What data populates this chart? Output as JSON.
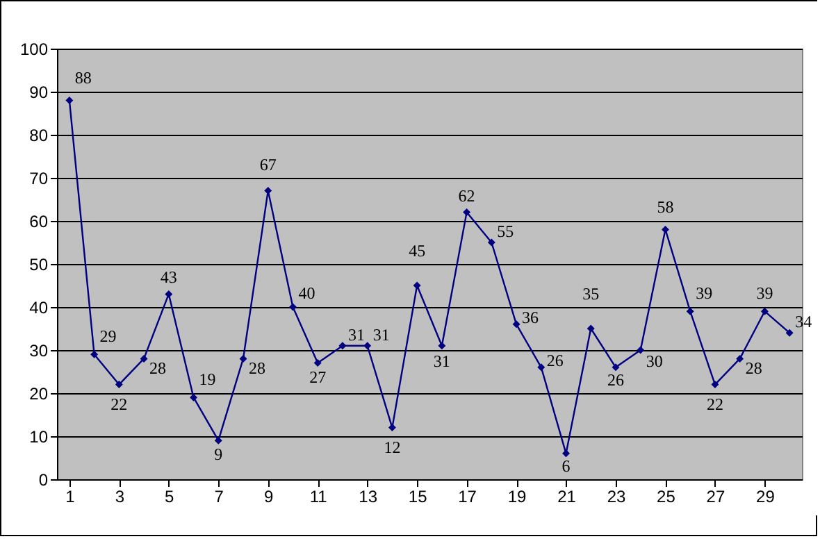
{
  "chart_data": {
    "type": "line",
    "x": [
      1,
      2,
      3,
      4,
      5,
      6,
      7,
      8,
      9,
      10,
      11,
      12,
      13,
      14,
      15,
      16,
      17,
      18,
      19,
      20,
      21,
      22,
      23,
      24,
      25,
      26,
      27,
      28,
      29,
      30
    ],
    "series": [
      {
        "color": "#000080",
        "values": [
          88,
          29,
          22,
          28,
          43,
          19,
          9,
          28,
          67,
          40,
          27,
          31,
          31,
          12,
          45,
          31,
          62,
          55,
          36,
          26,
          6,
          35,
          26,
          30,
          58,
          39,
          22,
          28,
          39,
          34
        ]
      }
    ],
    "xlim": [
      0.5,
      30.5
    ],
    "xticks": [
      1,
      3,
      5,
      7,
      9,
      11,
      13,
      15,
      17,
      19,
      21,
      23,
      25,
      27,
      29
    ],
    "ylim": [
      0,
      100
    ],
    "yticks": [
      0,
      10,
      20,
      30,
      40,
      50,
      60,
      70,
      80,
      90,
      100
    ],
    "grid": "y",
    "marker": "diamond",
    "line_style": "solid",
    "data_labels": true,
    "legend": false
  }
}
